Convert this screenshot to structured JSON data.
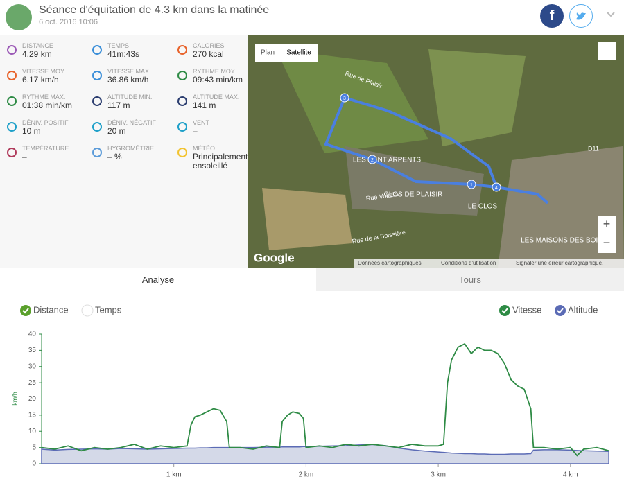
{
  "header": {
    "title": "Séance d'équitation de 4.3 km dans la matinée",
    "date": "6 oct. 2016 10:06",
    "facebook": "f"
  },
  "stats": [
    {
      "label": "DISTANCE",
      "value": "4,29 km",
      "color": "#9b59b6"
    },
    {
      "label": "TEMPS",
      "value": "41m:43s",
      "color": "#3b8fd9"
    },
    {
      "label": "CALORIES",
      "value": "270 kcal",
      "color": "#e8632b"
    },
    {
      "label": "VITESSE MOY.",
      "value": "6.17 km/h",
      "color": "#e8632b"
    },
    {
      "label": "VITESSE MAX.",
      "value": "36.86 km/h",
      "color": "#3b8fd9"
    },
    {
      "label": "RYTHME MOY.",
      "value": "09:43 min/km",
      "color": "#2e8b45"
    },
    {
      "label": "RYTHME MAX.",
      "value": "01:38 min/km",
      "color": "#2e8b45"
    },
    {
      "label": "ALTITUDE MIN.",
      "value": "117 m",
      "color": "#2c3e70"
    },
    {
      "label": "ALTITUDE MAX.",
      "value": "141 m",
      "color": "#2c3e70"
    },
    {
      "label": "DÉNIV. POSITIF",
      "value": "10 m",
      "color": "#1fa0c9"
    },
    {
      "label": "DÉNIV. NÉGATIF",
      "value": "20 m",
      "color": "#1fa0c9"
    },
    {
      "label": "VENT",
      "value": "–",
      "color": "#1fa0c9"
    },
    {
      "label": "TEMPÉRATURE",
      "value": "–",
      "color": "#b03a5b"
    },
    {
      "label": "HYGROMÉTRIE",
      "value": "– %",
      "color": "#5b9bd9"
    },
    {
      "label": "MÉTÉO",
      "value": "Principalement ensoleillé",
      "color": "#f2c330"
    }
  ],
  "map": {
    "plan": "Plan",
    "satellite": "Satellite",
    "places": [
      "LES CENT ARPENTS",
      "CLOS DE PLAISIR",
      "LE CLOS",
      "LES MAISONS DES BOIS"
    ],
    "roads": [
      "Rue de Plaisir",
      "Rue Voltaire",
      "Rue de la Boissière",
      "D11"
    ],
    "markers": [
      "1",
      "2",
      "3",
      "4"
    ],
    "google": "Google",
    "footer": [
      "Données cartographiques",
      "Conditions d'utilisation",
      "Signaler une erreur cartographique."
    ],
    "zoom_in": "+",
    "zoom_out": "−"
  },
  "tabs": [
    "Analyse",
    "Tours"
  ],
  "x_modes": [
    "Distance",
    "Temps"
  ],
  "chart_data": {
    "type": "line",
    "y_label": "km/h",
    "x": [
      0,
      0.1,
      0.2,
      0.3,
      0.4,
      0.5,
      0.6,
      0.7,
      0.8,
      0.9,
      1.0,
      1.1,
      1.13,
      1.16,
      1.2,
      1.25,
      1.3,
      1.35,
      1.4,
      1.42,
      1.5,
      1.6,
      1.7,
      1.8,
      1.82,
      1.86,
      1.9,
      1.95,
      1.98,
      2.0,
      2.1,
      2.2,
      2.3,
      2.4,
      2.5,
      2.6,
      2.7,
      2.8,
      2.9,
      3.0,
      3.04,
      3.07,
      3.1,
      3.15,
      3.2,
      3.25,
      3.3,
      3.35,
      3.4,
      3.45,
      3.5,
      3.55,
      3.6,
      3.65,
      3.7,
      3.72,
      3.8,
      3.9,
      4.0,
      4.05,
      4.1,
      4.2,
      4.29
    ],
    "series": [
      {
        "name": "Vitesse",
        "color": "#2e8b45",
        "values": [
          5,
          4.5,
          5.5,
          4,
          5,
          4.5,
          5,
          6,
          4.5,
          5.5,
          5,
          5.5,
          12,
          14.5,
          15,
          16,
          17,
          16.5,
          13,
          5,
          5,
          4.5,
          5.5,
          5,
          13,
          15,
          16,
          15.5,
          14,
          5,
          5.5,
          5,
          6,
          5.5,
          6,
          5.5,
          5,
          6,
          5.5,
          5.5,
          6,
          25,
          32,
          36,
          37,
          34,
          36,
          35,
          35,
          34,
          31,
          26,
          24,
          23,
          17,
          5,
          5,
          4.5,
          5,
          2.5,
          4.5,
          5,
          4
        ]
      },
      {
        "name": "Altitude",
        "color": "#5b6bb5",
        "fill": "#d4d9e8",
        "values": [
          4.5,
          4.2,
          4.4,
          4.5,
          4.6,
          4.5,
          4.7,
          4.6,
          4.5,
          4.6,
          4.7,
          4.8,
          4.8,
          4.8,
          4.9,
          4.9,
          5,
          5,
          5,
          5,
          5,
          5,
          5.1,
          5.1,
          5.2,
          5.2,
          5.2,
          5.2,
          5.3,
          5.3,
          5.4,
          5.5,
          5.6,
          5.8,
          5.9,
          5.6,
          4.8,
          4.3,
          3.9,
          3.6,
          3.5,
          3.4,
          3.3,
          3.2,
          3.1,
          3.1,
          3.0,
          3.0,
          2.9,
          2.9,
          2.9,
          3.0,
          3.0,
          3.0,
          3.1,
          4.2,
          4.3,
          4.3,
          4.2,
          4.1,
          4.0,
          3.9,
          3.8
        ]
      }
    ],
    "xlim": [
      0,
      4.3
    ],
    "xticks": [
      {
        "value": 1,
        "label": "1 km"
      },
      {
        "value": 2,
        "label": "2 km"
      },
      {
        "value": 3,
        "label": "3 km"
      },
      {
        "value": 4,
        "label": "4 km"
      }
    ],
    "ylim": [
      0,
      40
    ],
    "yticks": [
      0,
      5,
      10,
      15,
      20,
      25,
      30,
      35,
      40
    ],
    "grid": false
  }
}
